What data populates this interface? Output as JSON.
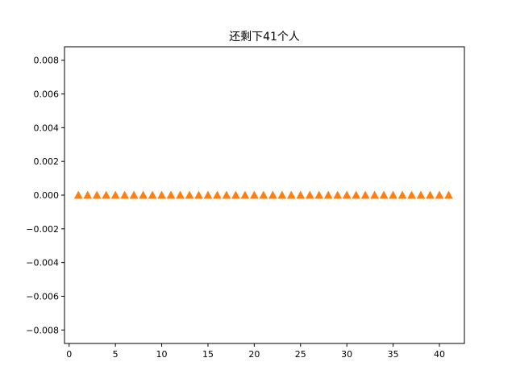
{
  "chart_data": {
    "type": "scatter",
    "title": "还剩下41个人",
    "xlabel": "",
    "ylabel": "",
    "xlim": [
      -0.5,
      42.7
    ],
    "ylim": [
      -0.0088,
      0.0088
    ],
    "grid": false,
    "marker": "triangle-up",
    "xticks": [
      0,
      5,
      10,
      15,
      20,
      25,
      30,
      35,
      40
    ],
    "xtick_labels": [
      "0",
      "5",
      "10",
      "15",
      "20",
      "25",
      "30",
      "35",
      "40"
    ],
    "yticks": [
      0.008,
      0.006,
      0.004,
      0.002,
      0.0,
      -0.002,
      -0.004,
      -0.006,
      -0.008
    ],
    "ytick_labels": [
      "0.008",
      "0.006",
      "0.004",
      "0.002",
      "0.000",
      "−0.002",
      "−0.004",
      "−0.006",
      "−0.008"
    ],
    "series": [
      {
        "color": "#ff7f0e",
        "x": [
          1,
          2,
          3,
          4,
          5,
          6,
          7,
          8,
          9,
          10,
          11,
          12,
          13,
          14,
          15,
          16,
          17,
          18,
          19,
          20,
          21,
          22,
          23,
          24,
          25,
          26,
          27,
          28,
          29,
          30,
          31,
          32,
          33,
          34,
          35,
          36,
          37,
          38,
          39,
          40,
          41
        ],
        "y": [
          0,
          0,
          0,
          0,
          0,
          0,
          0,
          0,
          0,
          0,
          0,
          0,
          0,
          0,
          0,
          0,
          0,
          0,
          0,
          0,
          0,
          0,
          0,
          0,
          0,
          0,
          0,
          0,
          0,
          0,
          0,
          0,
          0,
          0,
          0,
          0,
          0,
          0,
          0,
          0,
          0
        ]
      }
    ]
  }
}
